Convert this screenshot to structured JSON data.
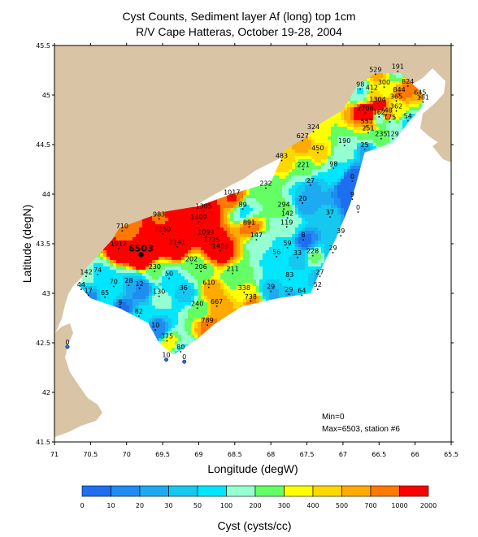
{
  "title": "Cyst Counts, Sediment layer Af (long) top 1cm",
  "subtitle": "R/V Cape Hatteras, October 19-28, 2004",
  "chart_data": {
    "type": "contour-map",
    "xlabel": "Longitude (degW)",
    "ylabel": "Latitude (degN)",
    "xlim": [
      71,
      65.5
    ],
    "ylim": [
      41.5,
      45.5
    ],
    "x_ticks": [
      "71",
      "70.5",
      "70",
      "69.5",
      "69",
      "68.5",
      "68",
      "67.5",
      "67",
      "66.5",
      "66",
      "65.5"
    ],
    "y_ticks": [
      "41.5",
      "42",
      "42.5",
      "43",
      "43.5",
      "44",
      "44.5",
      "45",
      "45.5"
    ],
    "min_label": "Min=0",
    "max_label": "Max=6503, station #6",
    "colorbar": {
      "label": "Cyst (cysts/cc)",
      "levels": [
        "0",
        "10",
        "20",
        "30",
        "50",
        "100",
        "200",
        "300",
        "400",
        "500",
        "700",
        "1000",
        "2000"
      ],
      "colors": [
        "#1e6ef0",
        "#1e8cf0",
        "#1eaaf0",
        "#14c8f0",
        "#00e6ff",
        "#96ffd2",
        "#64ff64",
        "#ffff00",
        "#ffd700",
        "#ffaa00",
        "#ff7800",
        "#ff0000"
      ]
    },
    "land_color": "#d9c4a5",
    "stations": [
      {
        "lon": 70.82,
        "lat": 42.46,
        "value": "0",
        "color": "#1e6ef0"
      },
      {
        "lon": 69.45,
        "lat": 42.33,
        "value": "10",
        "color": "#1e6ef0"
      },
      {
        "lon": 69.2,
        "lat": 42.31,
        "value": "0",
        "color": "#1e6ef0"
      },
      {
        "lon": 69.8,
        "lat": 43.39,
        "value": "6503",
        "color": "#000000",
        "big": true
      },
      {
        "lon": 70.56,
        "lat": 43.17,
        "value": "142"
      },
      {
        "lon": 70.4,
        "lat": 43.19,
        "value": "74"
      },
      {
        "lon": 70.63,
        "lat": 43.04,
        "value": "44"
      },
      {
        "lon": 70.53,
        "lat": 42.98,
        "value": "17"
      },
      {
        "lon": 70.3,
        "lat": 42.96,
        "value": "65"
      },
      {
        "lon": 70.18,
        "lat": 43.07,
        "value": "70"
      },
      {
        "lon": 69.97,
        "lat": 43.08,
        "value": "28"
      },
      {
        "lon": 69.82,
        "lat": 43.05,
        "value": "12"
      },
      {
        "lon": 70.09,
        "lat": 42.86,
        "value": "9"
      },
      {
        "lon": 69.83,
        "lat": 42.77,
        "value": "82"
      },
      {
        "lon": 69.55,
        "lat": 42.97,
        "value": "130"
      },
      {
        "lon": 69.41,
        "lat": 43.15,
        "value": "50"
      },
      {
        "lon": 69.21,
        "lat": 43.01,
        "value": "36"
      },
      {
        "lon": 69.6,
        "lat": 42.63,
        "value": "10"
      },
      {
        "lon": 69.44,
        "lat": 42.52,
        "value": "375"
      },
      {
        "lon": 69.25,
        "lat": 42.41,
        "value": "80"
      },
      {
        "lon": 69.02,
        "lat": 42.85,
        "value": "240"
      },
      {
        "lon": 68.88,
        "lat": 42.68,
        "value": "789"
      },
      {
        "lon": 68.75,
        "lat": 42.87,
        "value": "667"
      },
      {
        "lon": 68.86,
        "lat": 43.06,
        "value": "610"
      },
      {
        "lon": 68.97,
        "lat": 43.22,
        "value": "206"
      },
      {
        "lon": 69.1,
        "lat": 43.3,
        "value": "202"
      },
      {
        "lon": 69.61,
        "lat": 43.22,
        "value": "230"
      },
      {
        "lon": 70.11,
        "lat": 43.45,
        "value": "1917"
      },
      {
        "lon": 70.06,
        "lat": 43.63,
        "value": "710"
      },
      {
        "lon": 69.55,
        "lat": 43.75,
        "value": "983"
      },
      {
        "lon": 69.5,
        "lat": 43.6,
        "value": "2250"
      },
      {
        "lon": 69.3,
        "lat": 43.47,
        "value": "2141"
      },
      {
        "lon": 69.0,
        "lat": 43.72,
        "value": "1409"
      },
      {
        "lon": 68.93,
        "lat": 43.83,
        "value": "1305"
      },
      {
        "lon": 68.9,
        "lat": 43.57,
        "value": "1093"
      },
      {
        "lon": 68.82,
        "lat": 43.49,
        "value": "1725"
      },
      {
        "lon": 68.7,
        "lat": 43.43,
        "value": "1453"
      },
      {
        "lon": 68.54,
        "lat": 43.97,
        "value": "1017"
      },
      {
        "lon": 68.39,
        "lat": 43.85,
        "value": "89"
      },
      {
        "lon": 68.3,
        "lat": 43.67,
        "value": "891"
      },
      {
        "lon": 68.2,
        "lat": 43.54,
        "value": "147"
      },
      {
        "lon": 68.53,
        "lat": 43.2,
        "value": "211"
      },
      {
        "lon": 68.37,
        "lat": 43.01,
        "value": "338"
      },
      {
        "lon": 68.28,
        "lat": 42.92,
        "value": "738"
      },
      {
        "lon": 68.0,
        "lat": 43.02,
        "value": "29"
      },
      {
        "lon": 67.74,
        "lat": 43.14,
        "value": "83"
      },
      {
        "lon": 67.92,
        "lat": 43.37,
        "value": "56"
      },
      {
        "lon": 67.77,
        "lat": 43.46,
        "value": "59"
      },
      {
        "lon": 67.63,
        "lat": 43.36,
        "value": "33"
      },
      {
        "lon": 67.55,
        "lat": 43.54,
        "value": "8"
      },
      {
        "lon": 67.42,
        "lat": 43.38,
        "value": "228"
      },
      {
        "lon": 67.32,
        "lat": 43.17,
        "value": "27"
      },
      {
        "lon": 67.57,
        "lat": 42.98,
        "value": "64"
      },
      {
        "lon": 67.35,
        "lat": 43.04,
        "value": "52"
      },
      {
        "lon": 67.75,
        "lat": 42.99,
        "value": "29"
      },
      {
        "lon": 67.14,
        "lat": 43.41,
        "value": "29"
      },
      {
        "lon": 67.03,
        "lat": 43.58,
        "value": "39"
      },
      {
        "lon": 67.18,
        "lat": 43.77,
        "value": "37"
      },
      {
        "lon": 67.77,
        "lat": 43.76,
        "value": "142"
      },
      {
        "lon": 67.82,
        "lat": 43.85,
        "value": "294"
      },
      {
        "lon": 67.78,
        "lat": 43.67,
        "value": "119"
      },
      {
        "lon": 68.07,
        "lat": 44.06,
        "value": "232"
      },
      {
        "lon": 67.56,
        "lat": 43.91,
        "value": "20"
      },
      {
        "lon": 67.45,
        "lat": 44.09,
        "value": "27"
      },
      {
        "lon": 67.85,
        "lat": 44.34,
        "value": "483"
      },
      {
        "lon": 67.55,
        "lat": 44.25,
        "value": "221"
      },
      {
        "lon": 67.35,
        "lat": 44.42,
        "value": "450"
      },
      {
        "lon": 67.56,
        "lat": 44.54,
        "value": "627"
      },
      {
        "lon": 67.41,
        "lat": 44.63,
        "value": "324"
      },
      {
        "lon": 67.13,
        "lat": 44.26,
        "value": "98"
      },
      {
        "lon": 66.98,
        "lat": 44.49,
        "value": "190"
      },
      {
        "lon": 66.7,
        "lat": 44.45,
        "value": "25"
      },
      {
        "lon": 66.87,
        "lat": 44.13,
        "value": "0"
      },
      {
        "lon": 66.87,
        "lat": 43.95,
        "value": "9"
      },
      {
        "lon": 66.79,
        "lat": 43.82,
        "value": "0"
      },
      {
        "lon": 66.47,
        "lat": 44.56,
        "value": "235"
      },
      {
        "lon": 66.31,
        "lat": 44.56,
        "value": "129"
      },
      {
        "lon": 66.65,
        "lat": 44.62,
        "value": "251"
      },
      {
        "lon": 66.5,
        "lat": 44.78,
        "value": "162"
      },
      {
        "lon": 66.67,
        "lat": 44.69,
        "value": "551"
      },
      {
        "lon": 66.35,
        "lat": 44.73,
        "value": "175"
      },
      {
        "lon": 66.1,
        "lat": 44.74,
        "value": "54"
      },
      {
        "lon": 66.69,
        "lat": 44.82,
        "value": "2706"
      },
      {
        "lon": 66.52,
        "lat": 44.91,
        "value": "1304"
      },
      {
        "lon": 66.4,
        "lat": 44.8,
        "value": "748"
      },
      {
        "lon": 66.26,
        "lat": 44.84,
        "value": "362"
      },
      {
        "lon": 66.26,
        "lat": 44.94,
        "value": "365"
      },
      {
        "lon": 66.22,
        "lat": 45.01,
        "value": "844"
      },
      {
        "lon": 66.6,
        "lat": 45.03,
        "value": "412"
      },
      {
        "lon": 66.76,
        "lat": 45.06,
        "value": "98"
      },
      {
        "lon": 66.43,
        "lat": 45.08,
        "value": "300"
      },
      {
        "lon": 66.55,
        "lat": 45.21,
        "value": "529"
      },
      {
        "lon": 66.24,
        "lat": 45.24,
        "value": "191"
      },
      {
        "lon": 66.1,
        "lat": 45.09,
        "value": "824"
      },
      {
        "lon": 65.93,
        "lat": 44.98,
        "value": "645"
      },
      {
        "lon": 65.89,
        "lat": 44.93,
        "value": "181"
      }
    ]
  }
}
